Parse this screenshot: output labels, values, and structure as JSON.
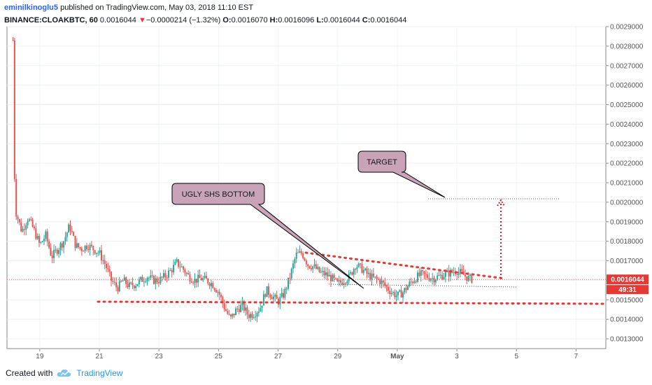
{
  "header": {
    "author": "eminilkinoglu5",
    "published_text": "published on TradingView.com, May 03, 2018 11:10 EST",
    "symbol": "BINANCE:CLOAKBTC, 60",
    "last": "0.0016044",
    "change_arrow": "▼",
    "change": "−0.0000214 (−1.32%)",
    "o_label": "O:",
    "o": "0.0016070",
    "h_label": "H:",
    "h": "0.0016096",
    "l_label": "L:",
    "l": "0.0016044",
    "c_label": "C:",
    "c": "0.0016044"
  },
  "footer": {
    "created_with": "Created with",
    "brand": "TradingView",
    "icon": "tradingview-cloud-icon"
  },
  "colors": {
    "up": "#26a69a",
    "down": "#ef5350",
    "annotation_fill": "#c9a3b8",
    "price_line": "#ef5350",
    "price_label_bg": "#e53935"
  },
  "chart_data": {
    "type": "candlestick",
    "ylim": [
      0.00125,
      0.0029
    ],
    "yticks": [
      "0.0013000",
      "0.0014000",
      "0.0015000",
      "0.0016000",
      "0.0017000",
      "0.0018000",
      "0.0019000",
      "0.0020000",
      "0.0021000",
      "0.0022000",
      "0.0023000",
      "0.0024000",
      "0.0025000",
      "0.0026000",
      "0.0027000",
      "0.0028000",
      "0.0029000"
    ],
    "xlabels": [
      {
        "day": 19,
        "label": "19"
      },
      {
        "day": 21,
        "label": "21"
      },
      {
        "day": 23,
        "label": "23"
      },
      {
        "day": 25,
        "label": "25"
      },
      {
        "day": 27,
        "label": "27"
      },
      {
        "day": 29,
        "label": "29"
      },
      {
        "day": 31,
        "label": "May"
      },
      {
        "day": 33,
        "label": "3"
      },
      {
        "day": 35,
        "label": "5"
      },
      {
        "day": 37,
        "label": "7"
      }
    ],
    "xrange_days": [
      17.9,
      38.0
    ],
    "price_path": [
      [
        18.1,
        0.00283
      ],
      [
        18.15,
        0.00215
      ],
      [
        18.2,
        0.00195
      ],
      [
        18.4,
        0.00185
      ],
      [
        18.6,
        0.00192
      ],
      [
        18.8,
        0.00186
      ],
      [
        19.0,
        0.00178
      ],
      [
        19.2,
        0.00183
      ],
      [
        19.4,
        0.00172
      ],
      [
        19.6,
        0.00176
      ],
      [
        19.8,
        0.0018
      ],
      [
        20.0,
        0.00188
      ],
      [
        20.2,
        0.00178
      ],
      [
        20.4,
        0.00176
      ],
      [
        20.6,
        0.00178
      ],
      [
        20.8,
        0.00176
      ],
      [
        21.0,
        0.00174
      ],
      [
        21.2,
        0.00168
      ],
      [
        21.4,
        0.0016
      ],
      [
        21.6,
        0.00156
      ],
      [
        21.8,
        0.0016
      ],
      [
        22.0,
        0.00157
      ],
      [
        22.2,
        0.00158
      ],
      [
        22.4,
        0.0016
      ],
      [
        22.6,
        0.00162
      ],
      [
        22.8,
        0.0016
      ],
      [
        23.0,
        0.0016
      ],
      [
        23.2,
        0.00162
      ],
      [
        23.4,
        0.00165
      ],
      [
        23.6,
        0.00169
      ],
      [
        23.8,
        0.00166
      ],
      [
        24.0,
        0.00162
      ],
      [
        24.2,
        0.0016
      ],
      [
        24.4,
        0.00161
      ],
      [
        24.6,
        0.0016
      ],
      [
        24.8,
        0.00158
      ],
      [
        25.0,
        0.00154
      ],
      [
        25.2,
        0.00146
      ],
      [
        25.4,
        0.0014
      ],
      [
        25.6,
        0.00145
      ],
      [
        25.8,
        0.00147
      ],
      [
        26.0,
        0.00142
      ],
      [
        26.2,
        0.00143
      ],
      [
        26.4,
        0.00146
      ],
      [
        26.6,
        0.00155
      ],
      [
        26.8,
        0.00152
      ],
      [
        27.0,
        0.00149
      ],
      [
        27.2,
        0.00153
      ],
      [
        27.4,
        0.00162
      ],
      [
        27.6,
        0.00173
      ],
      [
        27.8,
        0.00174
      ],
      [
        28.0,
        0.00168
      ],
      [
        28.2,
        0.00167
      ],
      [
        28.4,
        0.00164
      ],
      [
        28.6,
        0.00163
      ],
      [
        28.8,
        0.00161
      ],
      [
        29.0,
        0.00158
      ],
      [
        29.2,
        0.0016
      ],
      [
        29.4,
        0.00162
      ],
      [
        29.6,
        0.00168
      ],
      [
        29.8,
        0.00166
      ],
      [
        30.0,
        0.00163
      ],
      [
        30.2,
        0.00161
      ],
      [
        30.4,
        0.0016
      ],
      [
        30.6,
        0.00157
      ],
      [
        30.8,
        0.00154
      ],
      [
        31.0,
        0.00152
      ],
      [
        31.2,
        0.00154
      ],
      [
        31.4,
        0.00158
      ],
      [
        31.6,
        0.00161
      ],
      [
        31.8,
        0.00163
      ],
      [
        32.0,
        0.00162
      ],
      [
        32.2,
        0.00161
      ],
      [
        32.4,
        0.00162
      ],
      [
        32.6,
        0.00163
      ],
      [
        32.8,
        0.00164
      ],
      [
        33.0,
        0.00165
      ],
      [
        33.2,
        0.00163
      ],
      [
        33.4,
        0.00161
      ],
      [
        33.55,
        0.0016044
      ]
    ],
    "current_price": 0.0016044,
    "current_label": "0.0016044",
    "countdown": "49:31"
  },
  "annotations": {
    "callout1": "UGLY SHS BOTTOM",
    "callout2": "TARGET"
  }
}
